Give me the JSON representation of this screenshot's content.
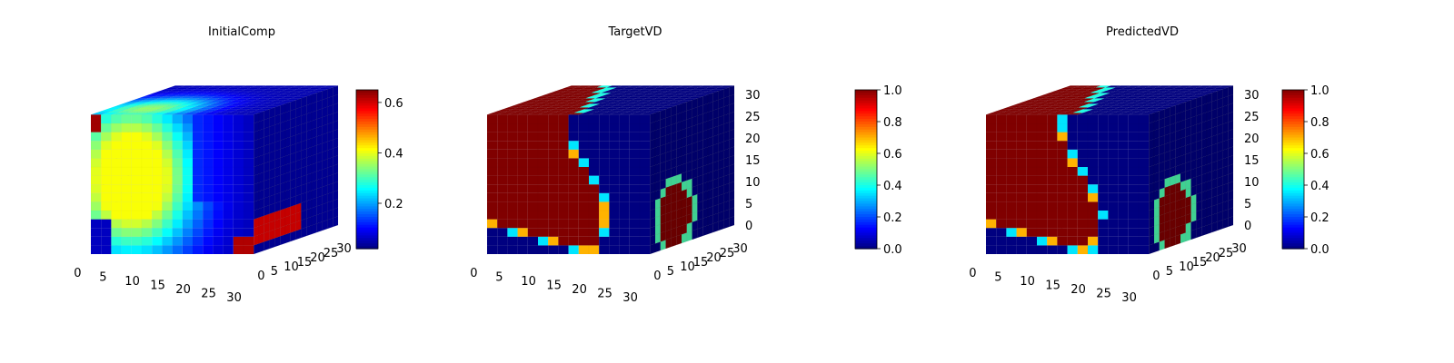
{
  "colors": {
    "jet": [
      "#00007f",
      "#0000ff",
      "#007fff",
      "#00ffff",
      "#7fff7f",
      "#ffff00",
      "#ff7f00",
      "#ff0000",
      "#7f0000"
    ],
    "pane": "#eaeaf2",
    "grid": "#c8c8c8",
    "axis": "#000000"
  },
  "chart_data": [
    {
      "type": "heatmap",
      "plot_kind": "3d-voxel",
      "title": "InitialComp",
      "colorscale": "jet",
      "x_ticks": [
        "0",
        "5",
        "10",
        "15",
        "20",
        "25",
        "30"
      ],
      "y_ticks": [
        "0",
        "5",
        "10",
        "15",
        "20",
        "25",
        "30"
      ],
      "z_ticks": [],
      "xlim": [
        0,
        32
      ],
      "ylim": [
        0,
        32
      ],
      "zlim": [
        0,
        32
      ],
      "colorbar": {
        "ticks": [
          "0.2",
          "0.4",
          "0.6"
        ],
        "min": 0.02,
        "max": 0.65
      },
      "pattern": "initial",
      "background_value": 0.05,
      "foreground_value": 0.4
    },
    {
      "type": "heatmap",
      "plot_kind": "3d-voxel",
      "title": "TargetVD",
      "colorscale": "jet",
      "x_ticks": [
        "0",
        "5",
        "10",
        "15",
        "20",
        "25",
        "30"
      ],
      "y_ticks": [
        "0",
        "5",
        "10",
        "15",
        "20",
        "25",
        "30"
      ],
      "z_ticks": [
        "0",
        "5",
        "10",
        "15",
        "20",
        "25",
        "30"
      ],
      "xlim": [
        0,
        32
      ],
      "ylim": [
        0,
        32
      ],
      "zlim": [
        0,
        32
      ],
      "colorbar": {
        "ticks": [
          "0.0",
          "0.2",
          "0.4",
          "0.6",
          "0.8",
          "1.0"
        ],
        "min": 0.0,
        "max": 1.0
      },
      "pattern": "target",
      "background_value": 0.0,
      "foreground_value": 1.0
    },
    {
      "type": "heatmap",
      "plot_kind": "3d-voxel",
      "title": "PredictedVD",
      "colorscale": "jet",
      "x_ticks": [
        "0",
        "5",
        "10",
        "15",
        "20",
        "25",
        "30"
      ],
      "y_ticks": [
        "0",
        "5",
        "10",
        "15",
        "20",
        "25",
        "30"
      ],
      "z_ticks": [
        "0",
        "5",
        "10",
        "15",
        "20",
        "25",
        "30"
      ],
      "xlim": [
        0,
        32
      ],
      "ylim": [
        0,
        32
      ],
      "zlim": [
        0,
        32
      ],
      "colorbar": {
        "ticks": [
          "0.0",
          "0.2",
          "0.4",
          "0.6",
          "0.8",
          "1.0"
        ],
        "min": 0.0,
        "max": 1.0
      },
      "pattern": "predicted",
      "background_value": 0.0,
      "foreground_value": 1.0
    }
  ]
}
